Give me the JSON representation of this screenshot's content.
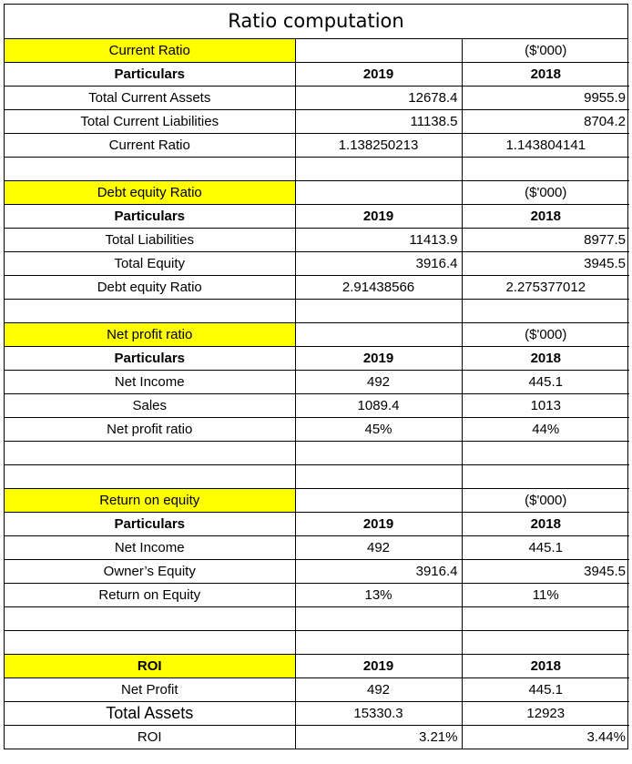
{
  "title": "Ratio computation",
  "colors": {
    "header_highlight": "#ffff00",
    "grid": "#000000"
  },
  "current_ratio": {
    "heading": "Current Ratio",
    "unit": "($'000)",
    "particulars": "Particulars",
    "y1": "2019",
    "y2": "2018",
    "rows": [
      {
        "label": "Total Current Assets",
        "v2019": "12678.4",
        "v2018": "9955.9"
      },
      {
        "label": "Total Current Liabilities",
        "v2019": "11138.5",
        "v2018": "8704.2"
      },
      {
        "label": "Current Ratio",
        "v2019": "1.138250213",
        "v2018": "1.143804141"
      }
    ]
  },
  "debt_equity": {
    "heading": "Debt equity Ratio",
    "unit": "($'000)",
    "particulars": "Particulars",
    "y1": "2019",
    "y2": "2018",
    "rows": [
      {
        "label": "Total Liabilities",
        "v2019": "11413.9",
        "v2018": "8977.5"
      },
      {
        "label": "Total Equity",
        "v2019": "3916.4",
        "v2018": "3945.5"
      },
      {
        "label": "Debt equity Ratio",
        "v2019": "2.91438566",
        "v2018": "2.275377012"
      }
    ]
  },
  "net_profit": {
    "heading": "Net profit ratio",
    "unit": "($'000)",
    "particulars": "Particulars",
    "y1": "2019",
    "y2": "2018",
    "rows": [
      {
        "label": "Net Income",
        "v2019": "492",
        "v2018": "445.1"
      },
      {
        "label": "Sales",
        "v2019": "1089.4",
        "v2018": "1013"
      },
      {
        "label": "Net profit ratio",
        "v2019": "45%",
        "v2018": "44%"
      }
    ]
  },
  "roe": {
    "heading": "Return on equity",
    "unit": "($'000)",
    "particulars": "Particulars",
    "y1": "2019",
    "y2": "2018",
    "rows": [
      {
        "label": "Net Income",
        "v2019": "492",
        "v2018": "445.1"
      },
      {
        "label": "Owner’s Equity",
        "v2019": "3916.4",
        "v2018": "3945.5"
      },
      {
        "label": "Return on Equity",
        "v2019": "13%",
        "v2018": "11%"
      }
    ]
  },
  "roi": {
    "heading": "ROI",
    "y1": "2019",
    "y2": "2018",
    "rows": [
      {
        "label": "Net Profit",
        "v2019": "492",
        "v2018": "445.1"
      },
      {
        "label": "Total Assets",
        "v2019": "15330.3",
        "v2018": "12923"
      },
      {
        "label": "ROI",
        "v2019": "3.21%",
        "v2018": "3.44%"
      }
    ]
  }
}
